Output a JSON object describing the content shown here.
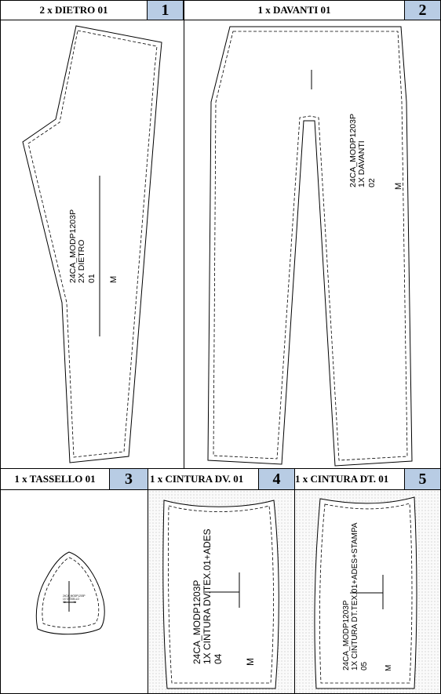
{
  "pieces": [
    {
      "number": "1",
      "title": "2 x DIETRO 01",
      "label": [
        "24CA_MODP1203P",
        "2X DIETRO",
        "01"
      ],
      "size": "M"
    },
    {
      "number": "2",
      "title": "1 x DAVANTI 01",
      "label": [
        "24CA_MODP1203P",
        "1X DAVANTI",
        "02"
      ],
      "size": "M"
    },
    {
      "number": "3",
      "title": "1 x TASSELLO 01",
      "label": [
        "24CA_MODP1203P",
        "1X TASSELLO",
        "03"
      ],
      "size": "M"
    },
    {
      "number": "4",
      "title": "1 x CINTURA DV. 01",
      "label": [
        "24CA_MODP1203P",
        "1X CINTURA DV.TEX.01+ADES",
        "04"
      ],
      "size": "M"
    },
    {
      "number": "5",
      "title": "1 x CINTURA DT. 01",
      "label": [
        "24CA_MODP1203P",
        "1X CINTURA DT.TEX.01+ADES+STAMPA",
        "05"
      ],
      "size": "M"
    }
  ],
  "colors": {
    "number_box": "#b8cce4",
    "line": "#000000",
    "stipple": "#b5b5b5"
  },
  "icons": [
    "grainline-icon"
  ]
}
